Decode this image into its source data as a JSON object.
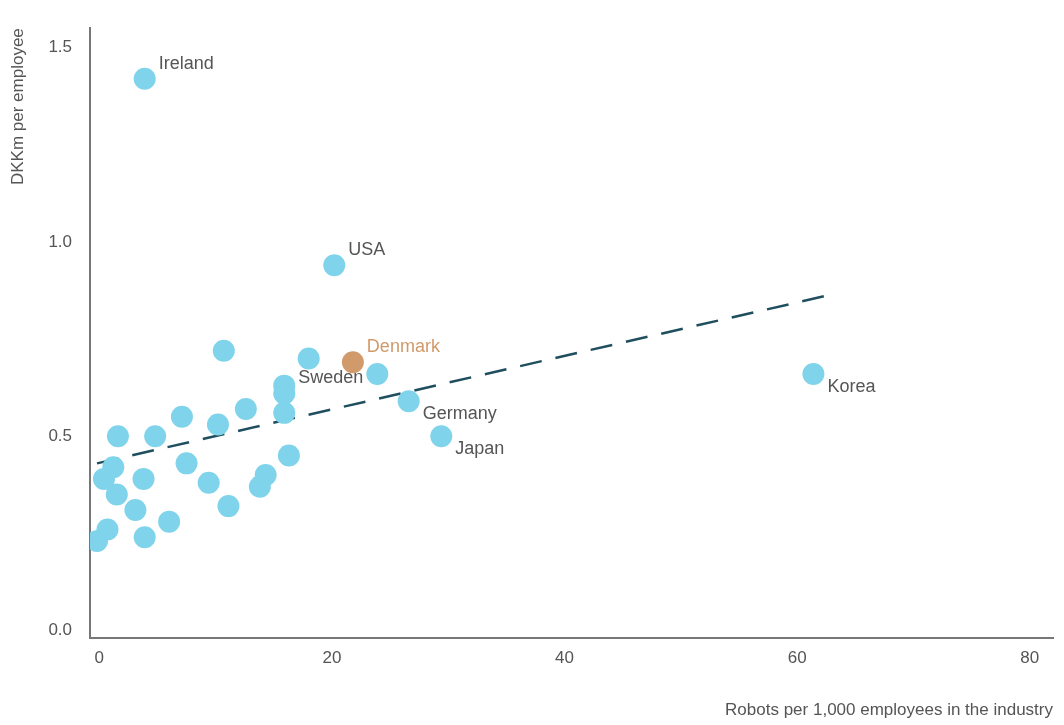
{
  "chart_data": {
    "type": "scatter",
    "xlabel": "Robots per 1,000 employees in the industry",
    "ylabel": "DKKm per employee",
    "xlim": [
      -0.8,
      82
    ],
    "xticks": [
      0,
      20,
      40,
      60,
      80
    ],
    "ylim": [
      -0.02,
      1.55
    ],
    "yticks": [
      {
        "value": 0,
        "label": "0.0"
      },
      0.5,
      {
        "value": 1,
        "label": "1.0"
      },
      1.5
    ],
    "grid": false,
    "legend": false,
    "series": [
      {
        "marker": "circle",
        "x": [
          3.9,
          20.2,
          10.7,
          18.0,
          21.8,
          23.9,
          15.9,
          15.9,
          15.9,
          12.6,
          7.1,
          10.2,
          26.6,
          29.4,
          61.4,
          1.6,
          4.8,
          1.2,
          7.5,
          16.3,
          0.4,
          3.8,
          9.4,
          14.3,
          13.8,
          1.5,
          3.1,
          11.1,
          6.0,
          0.7,
          3.9,
          -0.2
        ],
        "values": [
          1.42,
          0.94,
          0.72,
          0.7,
          0.69,
          0.66,
          0.63,
          0.61,
          0.56,
          0.57,
          0.55,
          0.53,
          0.59,
          0.5,
          0.66,
          0.5,
          0.5,
          0.42,
          0.43,
          0.45,
          0.39,
          0.39,
          0.38,
          0.4,
          0.37,
          0.35,
          0.31,
          0.32,
          0.28,
          0.26,
          0.24,
          0.23
        ],
        "colors": [
          "#7fd3ea",
          "#7fd3ea",
          "#7fd3ea",
          "#7fd3ea",
          "#d09a6a",
          "#7fd3ea",
          "#7fd3ea",
          "#7fd3ea",
          "#7fd3ea",
          "#7fd3ea",
          "#7fd3ea",
          "#7fd3ea",
          "#7fd3ea",
          "#7fd3ea",
          "#7fd3ea",
          "#7fd3ea",
          "#7fd3ea",
          "#7fd3ea",
          "#7fd3ea",
          "#7fd3ea",
          "#7fd3ea",
          "#7fd3ea",
          "#7fd3ea",
          "#7fd3ea",
          "#7fd3ea",
          "#7fd3ea",
          "#7fd3ea",
          "#7fd3ea",
          "#7fd3ea",
          "#7fd3ea",
          "#7fd3ea",
          "#7fd3ea"
        ]
      },
      {
        "type": "line",
        "x": [
          -0.2,
          62.3
        ],
        "values": [
          0.43,
          0.86
        ],
        "color": "#1f4e5f",
        "line_style": "dashed"
      }
    ],
    "annotations": [
      {
        "text": "Ireland",
        "x": 3.9,
        "y": 1.42
      },
      {
        "text": "USA",
        "x": 20.2,
        "y": 0.94
      },
      {
        "text": "Denmark",
        "x": 21.8,
        "y": 0.69
      },
      {
        "text": "Sweden",
        "x": 15.9,
        "y": 0.61
      },
      {
        "text": "Germany",
        "x": 26.6,
        "y": 0.59
      },
      {
        "text": "Japan",
        "x": 29.4,
        "y": 0.5
      },
      {
        "text": "Korea",
        "x": 61.4,
        "y": 0.66
      }
    ]
  }
}
